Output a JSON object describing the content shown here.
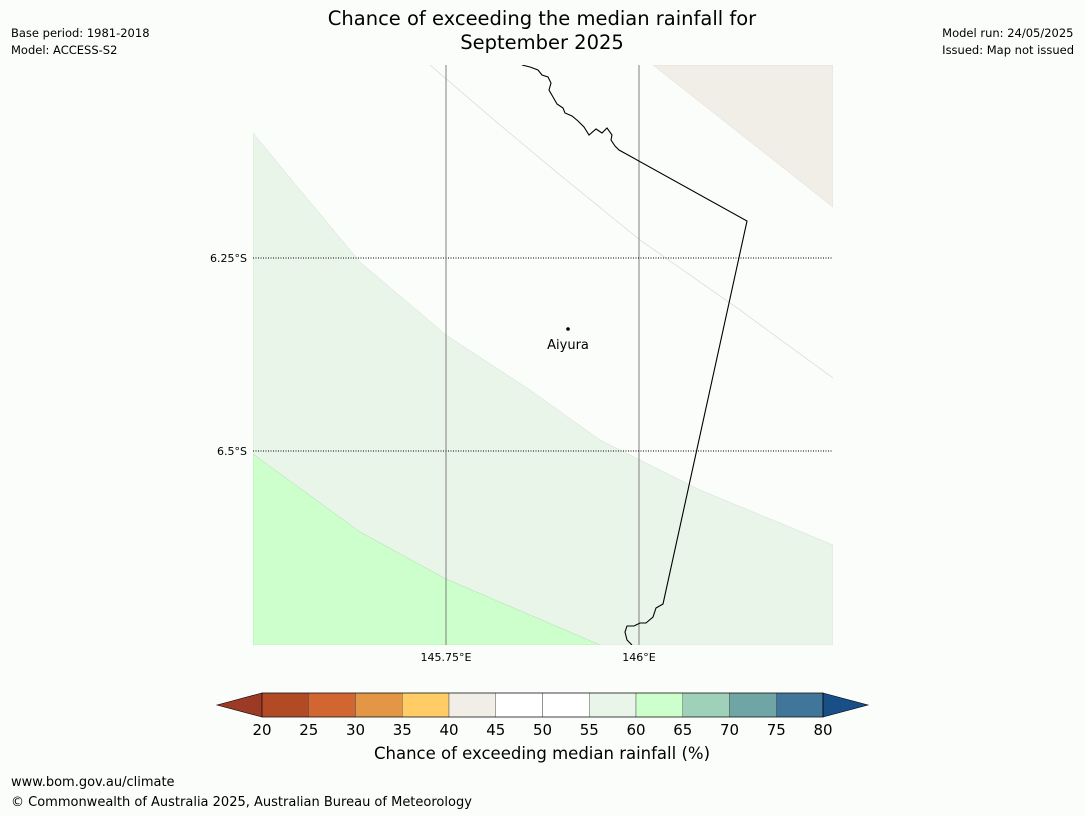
{
  "header": {
    "title_line1": "Chance of exceeding the median rainfall for",
    "title_line2": "September 2025",
    "base_period": "Base period: 1981-2018",
    "model": "Model: ACCESS-S2",
    "model_run": "Model run: 24/05/2025",
    "issued": "Issued: Map not issued"
  },
  "map": {
    "lat_labels": [
      "6.25°S",
      "6.5°S"
    ],
    "lon_labels": [
      "145.75°E",
      "146°E"
    ],
    "place": "Aiyura"
  },
  "colorbar": {
    "ticks": [
      "20",
      "25",
      "30",
      "35",
      "40",
      "45",
      "50",
      "55",
      "60",
      "65",
      "70",
      "75",
      "80"
    ],
    "colors": [
      "#9d3a25",
      "#b34a26",
      "#d16630",
      "#e39646",
      "#ffcc66",
      "#f1ede7",
      "#ffffff",
      "#ffffff",
      "#eaf5ea",
      "#ccffcc",
      "#9fd0b9",
      "#6fa5a5",
      "#3f769a",
      "#174f86"
    ],
    "label": "Chance of exceeding median rainfall (%)"
  },
  "footer": {
    "url": "www.bom.gov.au/climate",
    "copyright": "© Commonwealth of Australia 2025, Australian Bureau of Meteorology"
  }
}
